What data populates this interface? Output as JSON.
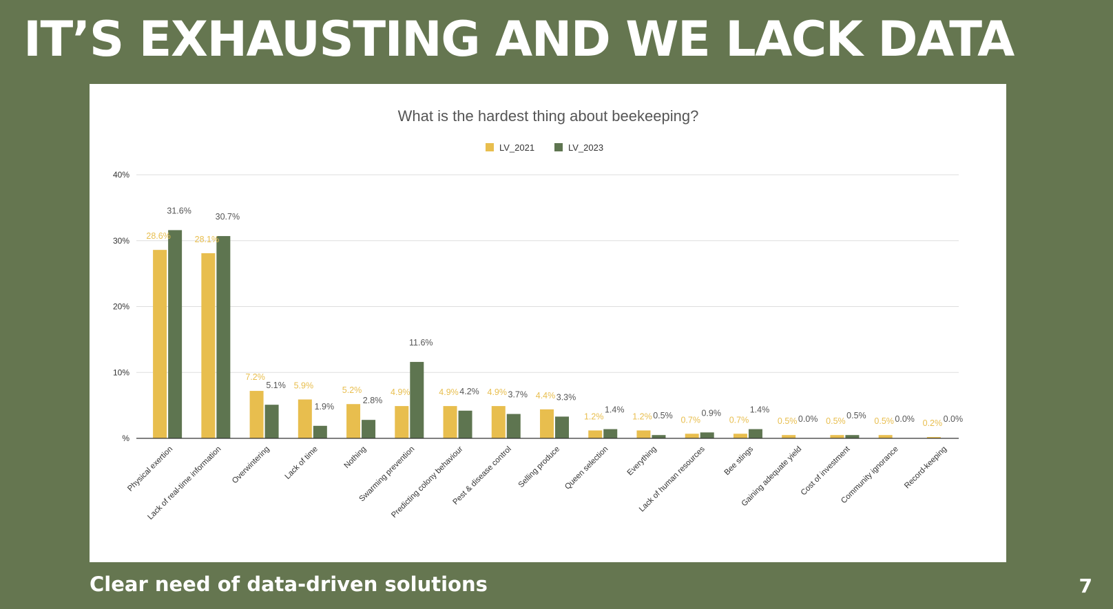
{
  "slide": {
    "title": "IT’S EXHAUSTING AND WE LACK DATA",
    "footer": "Clear need of data-driven solutions",
    "page_number": "7"
  },
  "colors": {
    "background": "#657650",
    "lv_2021": "#E8BE4E",
    "lv_2023": "#5E7550",
    "label_2021": "#E8BE4E",
    "label_2023": "#555555",
    "grid": "#DDDDDD",
    "axis": "#333333"
  },
  "chart_data": {
    "type": "bar",
    "title": "What is the hardest thing about beekeeping?",
    "xlabel": "",
    "ylabel": "",
    "ylim": [
      0,
      40
    ],
    "yticks": [
      0,
      10,
      20,
      30,
      40
    ],
    "ytick_labels": [
      "%",
      "10%",
      "20%",
      "30%",
      "40%"
    ],
    "grid": true,
    "legend_position": "top-center",
    "categories": [
      "Physical exertion",
      "Lack of real-time information",
      "Overwintering",
      "Lack of time",
      "Nothing",
      "Swarming prevention",
      "Predicting colony behaviour",
      "Pest & disease control",
      "Selling produce",
      "Queen selection",
      "Everything",
      "Lack of human resources",
      "Bee stings",
      "Gaining adequate yield",
      "Cost of investment",
      "Community ignorance",
      "Record-keeping"
    ],
    "series": [
      {
        "name": "LV_2021",
        "values": [
          28.6,
          28.1,
          7.2,
          5.9,
          5.2,
          4.9,
          4.9,
          4.9,
          4.4,
          1.2,
          1.2,
          0.7,
          0.7,
          0.5,
          0.5,
          0.5,
          0.2
        ],
        "labels": [
          "28.6%",
          "28.1%",
          "7.2%",
          "5.9%",
          "5.2%",
          "4.9%",
          "4.9%",
          "4.9%",
          "4.4%",
          "1.2%",
          "1.2%",
          "0.7%",
          "0.7%",
          "0.5%",
          "0.5%",
          "0.5%",
          "0.2%"
        ]
      },
      {
        "name": "LV_2023",
        "values": [
          31.6,
          30.7,
          5.1,
          1.9,
          2.8,
          11.6,
          4.2,
          3.7,
          3.3,
          1.4,
          0.5,
          0.9,
          1.4,
          0.0,
          0.5,
          0.0,
          0.0
        ],
        "labels": [
          "31.6%",
          "30.7%",
          "5.1%",
          "1.9%",
          "2.8%",
          "11.6%",
          "4.2%",
          "3.7%",
          "3.3%",
          "1.4%",
          "0.5%",
          "0.9%",
          "1.4%",
          "0.0%",
          "0.5%",
          "0.0%",
          "0.0%"
        ]
      }
    ]
  }
}
